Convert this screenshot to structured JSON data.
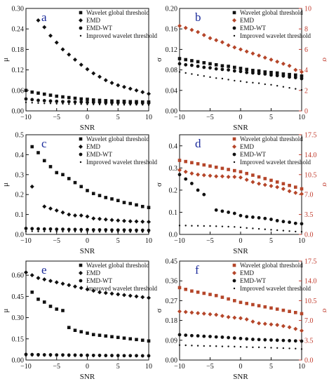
{
  "colors": {
    "black": "#111111",
    "red": "#b5462a",
    "axis": "#111111",
    "right_axis": "#c0392b",
    "letter": "#1a2a9a"
  },
  "chart_data": [
    {
      "type": "scatter",
      "panel": "a",
      "xlabel": "SNR",
      "ylabel": "μ",
      "xlim": [
        -10,
        10
      ],
      "ylim": [
        0,
        0.3
      ],
      "xticks": [
        "−10",
        "−5",
        "0",
        "5",
        "10"
      ],
      "yticks": [
        "0.00",
        "0.06",
        "0.12",
        "0.18",
        "0.24",
        "0.30"
      ],
      "legend": [
        "Wavelet global threshold",
        "EMD",
        "EMD-WT",
        "Improved wavelet threshold"
      ],
      "x": [
        -10,
        -9,
        -8,
        -7,
        -6,
        -5,
        -4,
        -3,
        -2,
        -1,
        0,
        1,
        2,
        3,
        4,
        5,
        6,
        7,
        8,
        9,
        10
      ],
      "series": [
        {
          "name": "Wavelet global threshold",
          "marker": "square",
          "color": "#111111",
          "axis": "left",
          "values": [
            0.06,
            0.055,
            0.052,
            0.049,
            0.046,
            0.043,
            0.041,
            0.039,
            0.037,
            0.035,
            0.034,
            0.032,
            0.031,
            0.03,
            0.029,
            0.028,
            0.028,
            0.027,
            0.027,
            0.026,
            0.026
          ]
        },
        {
          "name": "EMD",
          "marker": "diamond",
          "color": "#111111",
          "axis": "left",
          "values": [
            null,
            null,
            0.265,
            0.245,
            0.22,
            0.2,
            0.18,
            0.165,
            0.15,
            0.135,
            0.122,
            0.11,
            0.1,
            0.09,
            0.082,
            0.075,
            0.07,
            0.065,
            0.06,
            0.055,
            0.05
          ]
        },
        {
          "name": "EMD-WT",
          "marker": "circle",
          "color": "#111111",
          "axis": "left",
          "values": [
            0.035,
            0.033,
            0.031,
            0.03,
            0.029,
            0.028,
            0.027,
            0.027,
            0.026,
            0.026,
            0.025,
            0.025,
            0.025,
            0.024,
            0.024,
            0.024,
            0.024,
            0.023,
            0.023,
            0.023,
            0.023
          ]
        },
        {
          "name": "Improved wavelet threshold",
          "marker": "star",
          "color": "#111111",
          "axis": "left",
          "values": [
            0.025,
            0.024,
            0.023,
            0.022,
            0.022,
            0.021,
            0.021,
            0.02,
            0.02,
            0.02,
            0.019,
            0.019,
            0.019,
            0.019,
            0.018,
            0.018,
            0.018,
            0.018,
            0.018,
            0.018,
            0.017
          ]
        }
      ]
    },
    {
      "type": "scatter",
      "panel": "b",
      "xlabel": "SNR",
      "ylabel": "σ",
      "ylabel_right": "σ",
      "xlim": [
        -10,
        10
      ],
      "ylim": [
        0,
        0.2
      ],
      "ylim_right": [
        0,
        10
      ],
      "xticks": [
        "−10",
        "−5",
        "0",
        "5",
        "10"
      ],
      "yticks": [
        "0.00",
        "0.04",
        "0.08",
        "0.12",
        "0.16",
        "0.20"
      ],
      "yticks_right": [
        "0",
        "2",
        "4",
        "6",
        "8",
        "10"
      ],
      "legend": [
        "Wavelet global threshold",
        "EMD",
        "EMD-WT",
        "Improved wavelet threshold"
      ],
      "x": [
        -10,
        -9,
        -8,
        -7,
        -6,
        -5,
        -4,
        -3,
        -2,
        -1,
        0,
        1,
        2,
        3,
        4,
        5,
        6,
        7,
        8,
        9,
        10
      ],
      "series": [
        {
          "name": "Wavelet global threshold",
          "marker": "square",
          "color": "#111111",
          "axis": "left",
          "values": [
            0.102,
            0.1,
            0.098,
            0.096,
            0.094,
            0.092,
            0.09,
            0.088,
            0.087,
            0.085,
            0.083,
            0.081,
            0.079,
            0.078,
            0.076,
            0.075,
            0.074,
            0.072,
            0.071,
            0.07,
            0.068
          ]
        },
        {
          "name": "EMD",
          "marker": "diamond",
          "color": "#b5462a",
          "axis": "right",
          "values": [
            8.3,
            8.1,
            7.9,
            7.7,
            7.4,
            7.1,
            6.9,
            6.7,
            6.4,
            6.2,
            6.0,
            5.8,
            5.6,
            5.4,
            5.2,
            5.0,
            4.8,
            4.6,
            4.4,
            4.0,
            3.8
          ]
        },
        {
          "name": "EMD-WT",
          "marker": "circle",
          "color": "#111111",
          "axis": "left",
          "values": [
            0.092,
            0.09,
            0.089,
            0.087,
            0.085,
            0.084,
            0.082,
            0.081,
            0.08,
            0.078,
            0.077,
            0.075,
            0.074,
            0.073,
            0.072,
            0.07,
            0.069,
            0.068,
            0.066,
            0.065,
            0.063
          ]
        },
        {
          "name": "Improved wavelet threshold",
          "marker": "star",
          "color": "#111111",
          "axis": "left",
          "values": [
            0.076,
            0.074,
            0.072,
            0.07,
            0.068,
            0.066,
            0.064,
            0.063,
            0.061,
            0.059,
            0.058,
            0.056,
            0.055,
            0.054,
            0.052,
            0.051,
            0.049,
            0.047,
            0.045,
            0.043,
            0.041
          ]
        }
      ]
    },
    {
      "type": "scatter",
      "panel": "c",
      "xlabel": "SNR",
      "ylabel": "μ",
      "xlim": [
        -10,
        10
      ],
      "ylim": [
        0,
        0.5
      ],
      "xticks": [
        "−10",
        "−5",
        "0",
        "5",
        "10"
      ],
      "yticks": [
        "0.0",
        "0.1",
        "0.2",
        "0.3",
        "0.4",
        "0.5"
      ],
      "legend": [
        "Wavelet global threshold",
        "EMD",
        "EMD-WT",
        "Improved wavelet threshold"
      ],
      "x": [
        -10,
        -9,
        -8,
        -7,
        -6,
        -5,
        -4,
        -3,
        -2,
        -1,
        0,
        1,
        2,
        3,
        4,
        5,
        6,
        7,
        8,
        9,
        10
      ],
      "series": [
        {
          "name": "Wavelet global threshold",
          "marker": "square",
          "color": "#111111",
          "axis": "left",
          "values": [
            null,
            0.44,
            0.41,
            0.37,
            0.34,
            0.31,
            0.3,
            0.28,
            0.26,
            0.24,
            0.22,
            0.205,
            0.195,
            0.185,
            0.178,
            0.17,
            0.16,
            0.155,
            0.148,
            0.14,
            0.135
          ]
        },
        {
          "name": "EMD",
          "marker": "diamond",
          "color": "#111111",
          "axis": "left",
          "values": [
            null,
            0.24,
            null,
            0.14,
            0.13,
            0.12,
            0.11,
            0.1,
            0.095,
            0.095,
            0.09,
            0.08,
            0.078,
            0.075,
            0.072,
            0.07,
            0.068,
            0.066,
            0.065,
            0.064,
            0.063
          ]
        },
        {
          "name": "EMD-WT",
          "marker": "circle",
          "color": "#111111",
          "axis": "left",
          "values": [
            0.03,
            0.029,
            0.028,
            0.027,
            0.027,
            0.026,
            0.026,
            0.025,
            0.025,
            0.024,
            0.024,
            0.023,
            0.023,
            0.023,
            0.022,
            0.022,
            0.022,
            0.021,
            0.021,
            0.021,
            0.02
          ]
        },
        {
          "name": "Improved wavelet threshold",
          "marker": "star",
          "color": "#111111",
          "axis": "left",
          "values": [
            0.016,
            0.016,
            0.015,
            0.015,
            0.015,
            0.014,
            0.014,
            0.014,
            0.014,
            0.013,
            0.013,
            0.013,
            0.013,
            0.013,
            0.012,
            0.012,
            0.012,
            0.012,
            0.012,
            0.012,
            0.011
          ]
        }
      ]
    },
    {
      "type": "scatter",
      "panel": "d",
      "xlabel": "SNR",
      "ylabel": "σ",
      "ylabel_right": "σ",
      "xlim": [
        -10,
        10
      ],
      "ylim": [
        0,
        0.45
      ],
      "ylim_right": [
        0,
        17.5
      ],
      "xticks": [
        "−10",
        "−5",
        "0",
        "5",
        "10"
      ],
      "yticks": [
        "0.0",
        "0.1",
        "0.2",
        "0.3",
        "0.4"
      ],
      "yticks_right": [
        "0.0",
        "3.5",
        "7.0",
        "10.5",
        "14.0",
        "17.5"
      ],
      "legend": [
        "Wavelet global threshold",
        "EMD",
        "EMD-WT",
        "Improved wavelet threshold"
      ],
      "x": [
        -10,
        -9,
        -8,
        -7,
        -6,
        -5,
        -4,
        -3,
        -2,
        -1,
        0,
        1,
        2,
        3,
        4,
        5,
        6,
        7,
        8,
        9,
        10
      ],
      "series": [
        {
          "name": "Wavelet global threshold",
          "marker": "square",
          "color": "#b5462a",
          "axis": "right",
          "values": [
            13.0,
            12.8,
            12.6,
            12.4,
            12.2,
            12.0,
            11.8,
            11.6,
            11.4,
            11.2,
            11.0,
            10.7,
            10.4,
            10.1,
            9.8,
            9.5,
            9.2,
            8.9,
            8.6,
            8.3,
            8.0
          ]
        },
        {
          "name": "EMD",
          "marker": "diamond",
          "color": "#b5462a",
          "axis": "right",
          "values": [
            11.3,
            11.0,
            10.7,
            10.5,
            10.4,
            10.3,
            10.2,
            10.2,
            10.1,
            10.1,
            10.0,
            9.6,
            9.2,
            8.9,
            8.7,
            8.5,
            8.3,
            8.0,
            7.6,
            7.3,
            7.1
          ]
        },
        {
          "name": "EMD-WT",
          "marker": "circle",
          "color": "#111111",
          "axis": "left",
          "values": [
            0.27,
            0.25,
            0.23,
            0.2,
            0.18,
            null,
            0.11,
            0.105,
            0.1,
            0.095,
            0.085,
            0.08,
            0.078,
            0.075,
            0.072,
            0.068,
            0.062,
            0.058,
            0.055,
            0.05,
            0.048
          ]
        },
        {
          "name": "Improved wavelet threshold",
          "marker": "star",
          "color": "#111111",
          "axis": "left",
          "values": [
            0.04,
            0.04,
            0.039,
            0.039,
            0.038,
            0.038,
            0.037,
            0.036,
            0.035,
            0.034,
            0.032,
            0.029,
            0.027,
            0.025,
            0.023,
            0.021,
            0.019,
            0.017,
            0.015,
            0.013,
            0.012
          ]
        }
      ]
    },
    {
      "type": "scatter",
      "panel": "e",
      "xlabel": "SNR",
      "ylabel": "μ",
      "xlim": [
        -10,
        10
      ],
      "ylim": [
        0,
        0.7
      ],
      "xticks": [
        "−10",
        "−5",
        "0",
        "5",
        "10"
      ],
      "yticks": [
        "0.00",
        "0.15",
        "0.30",
        "0.45",
        "0.60"
      ],
      "legend": [
        "Wavelet global threshold",
        "EMD",
        "EMD-WT",
        "Improved wavelet threshold"
      ],
      "x": [
        -10,
        -9,
        -8,
        -7,
        -6,
        -5,
        -4,
        -3,
        -2,
        -1,
        0,
        1,
        2,
        3,
        4,
        5,
        6,
        7,
        8,
        9,
        10
      ],
      "series": [
        {
          "name": "Wavelet global threshold",
          "marker": "square",
          "color": "#111111",
          "axis": "left",
          "values": [
            null,
            0.48,
            0.43,
            0.41,
            0.38,
            0.36,
            0.35,
            0.23,
            0.21,
            0.2,
            0.19,
            0.18,
            0.175,
            0.17,
            0.165,
            0.16,
            0.155,
            0.15,
            0.145,
            0.14,
            0.135
          ]
        },
        {
          "name": "EMD",
          "marker": "diamond",
          "color": "#111111",
          "axis": "left",
          "values": [
            0.62,
            0.6,
            0.58,
            0.57,
            0.56,
            0.55,
            0.54,
            0.53,
            0.52,
            0.51,
            0.5,
            0.49,
            0.48,
            0.475,
            0.47,
            0.465,
            0.46,
            0.455,
            0.45,
            0.445,
            0.44
          ]
        },
        {
          "name": "EMD-WT",
          "marker": "circle",
          "color": "#111111",
          "axis": "left",
          "values": [
            0.04,
            0.039,
            0.038,
            0.037,
            0.037,
            0.036,
            0.036,
            0.035,
            0.035,
            0.034,
            0.034,
            0.033,
            0.033,
            0.032,
            0.032,
            0.032,
            0.031,
            0.031,
            0.031,
            0.03,
            0.03
          ]
        },
        {
          "name": "Improved wavelet threshold",
          "marker": "star",
          "color": "#111111",
          "axis": "left",
          "values": [
            0.03,
            0.03,
            0.029,
            0.029,
            0.028,
            0.028,
            0.028,
            0.027,
            0.027,
            0.027,
            0.026,
            0.026,
            0.026,
            0.026,
            0.025,
            0.025,
            0.025,
            0.025,
            0.024,
            0.024,
            0.024
          ]
        }
      ]
    },
    {
      "type": "scatter",
      "panel": "f",
      "xlabel": "SNR",
      "ylabel": "σ",
      "ylabel_right": "σ",
      "xlim": [
        -10,
        10
      ],
      "ylim": [
        0,
        0.45
      ],
      "ylim_right": [
        0,
        17.5
      ],
      "xticks": [
        "−10",
        "−5",
        "0",
        "5",
        "10"
      ],
      "yticks": [
        "0.00",
        "0.09",
        "0.18",
        "0.27",
        "0.36",
        "0.45"
      ],
      "yticks_right": [
        "0.0",
        "3.5",
        "7.0",
        "10.5",
        "14.0",
        "17.5"
      ],
      "legend": [
        "Wavelet global threshold",
        "EMD",
        "EMD-WT",
        "Improved wavelet threshold"
      ],
      "x": [
        -10,
        -9,
        -8,
        -7,
        -6,
        -5,
        -4,
        -3,
        -2,
        -1,
        0,
        1,
        2,
        3,
        4,
        5,
        6,
        7,
        8,
        9,
        10
      ],
      "series": [
        {
          "name": "Wavelet global threshold",
          "marker": "square",
          "color": "#b5462a",
          "axis": "right",
          "values": [
            12.8,
            12.5,
            12.2,
            12.0,
            11.8,
            11.6,
            11.4,
            11.1,
            10.8,
            10.5,
            10.2,
            10.0,
            9.8,
            9.6,
            9.4,
            9.2,
            9.0,
            8.8,
            8.6,
            8.4,
            8.2
          ]
        },
        {
          "name": "EMD",
          "marker": "diamond",
          "color": "#b5462a",
          "axis": "right",
          "values": [
            8.6,
            8.5,
            8.4,
            8.3,
            8.2,
            8.1,
            8.0,
            7.8,
            7.6,
            7.5,
            7.4,
            7.2,
            6.8,
            6.5,
            6.4,
            6.3,
            6.2,
            6.0,
            5.8,
            5.5,
            5.2
          ]
        },
        {
          "name": "EMD-WT",
          "marker": "circle",
          "color": "#111111",
          "axis": "left",
          "values": [
            0.115,
            0.113,
            0.111,
            0.11,
            0.108,
            0.107,
            0.105,
            0.104,
            0.102,
            0.1,
            0.098,
            0.096,
            0.094,
            0.093,
            0.092,
            0.091,
            0.09,
            0.089,
            0.088,
            0.087,
            0.086
          ]
        },
        {
          "name": "Improved wavelet threshold",
          "marker": "star",
          "color": "#111111",
          "axis": "left",
          "values": [
            0.068,
            0.067,
            0.066,
            0.065,
            0.064,
            0.064,
            0.063,
            0.062,
            0.062,
            0.061,
            0.06,
            0.059,
            0.058,
            0.058,
            0.057,
            0.056,
            0.055,
            0.054,
            0.053,
            0.052,
            0.05
          ]
        }
      ]
    }
  ]
}
